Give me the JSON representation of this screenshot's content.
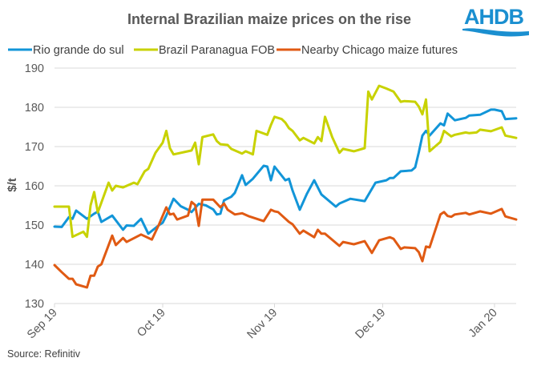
{
  "logo": {
    "text": "AHDB",
    "color": "#1a8fd0"
  },
  "source": "Source: Refinitiv",
  "chart_data": {
    "type": "line",
    "title": "Internal Brazilian maize prices on the rise",
    "xlabel": "",
    "ylabel": "$/t",
    "ylim": [
      130,
      190
    ],
    "yticks": [
      130,
      140,
      150,
      160,
      170,
      180,
      190
    ],
    "xlim": [
      "2019-09-01",
      "2020-01-07"
    ],
    "xticks": [
      {
        "date": "2019-09-01",
        "label": "Sep 19"
      },
      {
        "date": "2019-10-01",
        "label": "Oct 19"
      },
      {
        "date": "2019-11-01",
        "label": "Nov 19"
      },
      {
        "date": "2019-12-01",
        "label": "Dec 19"
      },
      {
        "date": "2020-01-01",
        "label": "Jan 20"
      }
    ],
    "grid": true,
    "legend": "top",
    "series": [
      {
        "name": "Rio grande do sul",
        "color": "#1295d8",
        "points": [
          [
            "2019-09-01",
            149.6
          ],
          [
            "2019-09-03",
            149.5
          ],
          [
            "2019-09-05",
            152.0
          ],
          [
            "2019-09-06",
            151.6
          ],
          [
            "2019-09-07",
            153.7
          ],
          [
            "2019-09-10",
            151.6
          ],
          [
            "2019-09-12",
            152.9
          ],
          [
            "2019-09-13",
            153.4
          ],
          [
            "2019-09-14",
            150.8
          ],
          [
            "2019-09-17",
            152.4
          ],
          [
            "2019-09-20",
            148.8
          ],
          [
            "2019-09-21",
            149.9
          ],
          [
            "2019-09-23",
            149.8
          ],
          [
            "2019-09-25",
            151.6
          ],
          [
            "2019-09-27",
            147.8
          ],
          [
            "2019-09-30",
            150.0
          ],
          [
            "2019-10-01",
            150.6
          ],
          [
            "2019-10-02",
            152.4
          ],
          [
            "2019-10-04",
            156.7
          ],
          [
            "2019-10-06",
            154.8
          ],
          [
            "2019-10-08",
            153.9
          ],
          [
            "2019-10-09",
            153.3
          ],
          [
            "2019-10-11",
            155.4
          ],
          [
            "2019-10-13",
            155.0
          ],
          [
            "2019-10-15",
            154.0
          ],
          [
            "2019-10-16",
            152.7
          ],
          [
            "2019-10-17",
            152.9
          ],
          [
            "2019-10-18",
            156.3
          ],
          [
            "2019-10-20",
            157.2
          ],
          [
            "2019-10-21",
            158.2
          ],
          [
            "2019-10-23",
            162.7
          ],
          [
            "2019-10-24",
            160.2
          ],
          [
            "2019-10-26",
            161.8
          ],
          [
            "2019-10-29",
            165.1
          ],
          [
            "2019-10-30",
            164.9
          ],
          [
            "2019-10-31",
            161.4
          ],
          [
            "2019-11-01",
            164.9
          ],
          [
            "2019-11-04",
            161.4
          ],
          [
            "2019-11-05",
            161.8
          ],
          [
            "2019-11-06",
            158.8
          ],
          [
            "2019-11-08",
            153.9
          ],
          [
            "2019-11-10",
            158.0
          ],
          [
            "2019-11-12",
            161.4
          ],
          [
            "2019-11-14",
            157.8
          ],
          [
            "2019-11-18",
            154.7
          ],
          [
            "2019-11-19",
            155.5
          ],
          [
            "2019-11-22",
            156.7
          ],
          [
            "2019-11-26",
            156.1
          ],
          [
            "2019-11-29",
            160.8
          ],
          [
            "2019-12-02",
            161.4
          ],
          [
            "2019-12-03",
            162.0
          ],
          [
            "2019-12-04",
            162.0
          ],
          [
            "2019-12-06",
            163.7
          ],
          [
            "2019-12-09",
            163.9
          ],
          [
            "2019-12-10",
            164.7
          ],
          [
            "2019-12-11",
            168.5
          ],
          [
            "2019-12-12",
            172.8
          ],
          [
            "2019-12-13",
            174.0
          ],
          [
            "2019-12-14",
            172.8
          ],
          [
            "2019-12-17",
            175.9
          ],
          [
            "2019-12-18",
            175.4
          ],
          [
            "2019-12-19",
            178.4
          ],
          [
            "2019-12-21",
            176.7
          ],
          [
            "2019-12-24",
            177.3
          ],
          [
            "2019-12-25",
            177.9
          ],
          [
            "2019-12-28",
            178.1
          ],
          [
            "2019-12-31",
            179.4
          ],
          [
            "2020-01-01",
            179.4
          ],
          [
            "2020-01-03",
            179.0
          ],
          [
            "2020-01-04",
            177.0
          ],
          [
            "2020-01-07",
            177.2
          ]
        ]
      },
      {
        "name": "Brazil Paranagua FOB",
        "color": "#c8d200",
        "points": [
          [
            "2019-09-01",
            154.7
          ],
          [
            "2019-09-05",
            154.7
          ],
          [
            "2019-09-06",
            147.0
          ],
          [
            "2019-09-09",
            148.3
          ],
          [
            "2019-09-10",
            147.0
          ],
          [
            "2019-09-11",
            155.0
          ],
          [
            "2019-09-12",
            158.4
          ],
          [
            "2019-09-13",
            153.2
          ],
          [
            "2019-09-16",
            160.8
          ],
          [
            "2019-09-17",
            158.8
          ],
          [
            "2019-09-18",
            160.0
          ],
          [
            "2019-09-20",
            159.6
          ],
          [
            "2019-09-23",
            160.8
          ],
          [
            "2019-09-24",
            160.4
          ],
          [
            "2019-09-26",
            163.7
          ],
          [
            "2019-09-27",
            164.3
          ],
          [
            "2019-09-29",
            168.4
          ],
          [
            "2019-10-01",
            171.0
          ],
          [
            "2019-10-02",
            174.0
          ],
          [
            "2019-10-03",
            169.6
          ],
          [
            "2019-10-04",
            168.0
          ],
          [
            "2019-10-08",
            168.8
          ],
          [
            "2019-10-09",
            169.0
          ],
          [
            "2019-10-10",
            171.0
          ],
          [
            "2019-10-11",
            165.5
          ],
          [
            "2019-10-12",
            172.4
          ],
          [
            "2019-10-15",
            173.1
          ],
          [
            "2019-10-16",
            171.4
          ],
          [
            "2019-10-17",
            170.6
          ],
          [
            "2019-10-19",
            170.4
          ],
          [
            "2019-10-20",
            169.4
          ],
          [
            "2019-10-23",
            168.2
          ],
          [
            "2019-10-24",
            168.8
          ],
          [
            "2019-10-25",
            168.4
          ],
          [
            "2019-10-26",
            168.0
          ],
          [
            "2019-10-27",
            174.0
          ],
          [
            "2019-10-30",
            173.0
          ],
          [
            "2019-10-31",
            175.5
          ],
          [
            "2019-11-01",
            177.6
          ],
          [
            "2019-11-03",
            177.0
          ],
          [
            "2019-11-04",
            176.1
          ],
          [
            "2019-11-05",
            174.7
          ],
          [
            "2019-11-06",
            174.0
          ],
          [
            "2019-11-08",
            171.6
          ],
          [
            "2019-11-09",
            172.2
          ],
          [
            "2019-11-12",
            170.8
          ],
          [
            "2019-11-13",
            172.4
          ],
          [
            "2019-11-14",
            171.4
          ],
          [
            "2019-11-15",
            177.6
          ],
          [
            "2019-11-17",
            172.4
          ],
          [
            "2019-11-19",
            168.4
          ],
          [
            "2019-11-20",
            169.4
          ],
          [
            "2019-11-23",
            168.8
          ],
          [
            "2019-11-26",
            169.6
          ],
          [
            "2019-11-27",
            184.0
          ],
          [
            "2019-11-28",
            182.0
          ],
          [
            "2019-11-30",
            185.5
          ],
          [
            "2019-12-02",
            184.8
          ],
          [
            "2019-12-04",
            184.0
          ],
          [
            "2019-12-06",
            181.4
          ],
          [
            "2019-12-07",
            181.6
          ],
          [
            "2019-12-10",
            181.4
          ],
          [
            "2019-12-11",
            180.2
          ],
          [
            "2019-12-12",
            178.2
          ],
          [
            "2019-12-13",
            182.0
          ],
          [
            "2019-12-14",
            168.8
          ],
          [
            "2019-12-17",
            171.2
          ],
          [
            "2019-12-18",
            174.0
          ],
          [
            "2019-12-20",
            172.6
          ],
          [
            "2019-12-21",
            173.0
          ],
          [
            "2019-12-24",
            173.6
          ],
          [
            "2019-12-25",
            173.4
          ],
          [
            "2019-12-27",
            173.6
          ],
          [
            "2019-12-28",
            174.3
          ],
          [
            "2019-12-31",
            173.9
          ],
          [
            "2020-01-03",
            174.9
          ],
          [
            "2020-01-04",
            172.8
          ],
          [
            "2020-01-07",
            172.2
          ]
        ]
      },
      {
        "name": "Nearby Chicago maize futures",
        "color": "#e05a13",
        "points": [
          [
            "2019-09-01",
            139.8
          ],
          [
            "2019-09-03",
            138.0
          ],
          [
            "2019-09-05",
            136.3
          ],
          [
            "2019-09-06",
            136.3
          ],
          [
            "2019-09-07",
            134.9
          ],
          [
            "2019-09-10",
            134.1
          ],
          [
            "2019-09-11",
            137.1
          ],
          [
            "2019-09-12",
            137.1
          ],
          [
            "2019-09-13",
            139.4
          ],
          [
            "2019-09-14",
            140.0
          ],
          [
            "2019-09-17",
            147.3
          ],
          [
            "2019-09-18",
            144.9
          ],
          [
            "2019-09-20",
            146.7
          ],
          [
            "2019-09-21",
            145.7
          ],
          [
            "2019-09-25",
            147.6
          ],
          [
            "2019-09-28",
            146.3
          ],
          [
            "2019-09-30",
            150.2
          ],
          [
            "2019-10-02",
            154.5
          ],
          [
            "2019-10-03",
            152.7
          ],
          [
            "2019-10-04",
            152.9
          ],
          [
            "2019-10-05",
            151.4
          ],
          [
            "2019-10-08",
            152.4
          ],
          [
            "2019-10-09",
            155.9
          ],
          [
            "2019-10-10",
            155.1
          ],
          [
            "2019-10-11",
            149.8
          ],
          [
            "2019-10-12",
            156.5
          ],
          [
            "2019-10-15",
            156.5
          ],
          [
            "2019-10-17",
            154.5
          ],
          [
            "2019-10-18",
            155.5
          ],
          [
            "2019-10-19",
            153.9
          ],
          [
            "2019-10-21",
            152.7
          ],
          [
            "2019-10-23",
            153.0
          ],
          [
            "2019-10-25",
            152.2
          ],
          [
            "2019-10-29",
            151.0
          ],
          [
            "2019-10-31",
            153.9
          ],
          [
            "2019-11-01",
            153.5
          ],
          [
            "2019-11-02",
            153.3
          ],
          [
            "2019-11-05",
            150.8
          ],
          [
            "2019-11-06",
            150.2
          ],
          [
            "2019-11-08",
            147.8
          ],
          [
            "2019-11-09",
            148.6
          ],
          [
            "2019-11-12",
            146.9
          ],
          [
            "2019-11-13",
            148.8
          ],
          [
            "2019-11-14",
            147.8
          ],
          [
            "2019-11-15",
            147.8
          ],
          [
            "2019-11-19",
            144.7
          ],
          [
            "2019-11-20",
            145.7
          ],
          [
            "2019-11-23",
            145.1
          ],
          [
            "2019-11-26",
            145.9
          ],
          [
            "2019-11-28",
            142.9
          ],
          [
            "2019-11-30",
            146.1
          ],
          [
            "2019-12-03",
            146.9
          ],
          [
            "2019-12-04",
            146.5
          ],
          [
            "2019-12-06",
            143.9
          ],
          [
            "2019-12-07",
            144.3
          ],
          [
            "2019-12-10",
            144.1
          ],
          [
            "2019-12-11",
            143.1
          ],
          [
            "2019-12-12",
            140.8
          ],
          [
            "2019-12-13",
            144.5
          ],
          [
            "2019-12-14",
            144.3
          ],
          [
            "2019-12-17",
            152.7
          ],
          [
            "2019-12-18",
            153.3
          ],
          [
            "2019-12-19",
            152.3
          ],
          [
            "2019-12-20",
            152.1
          ],
          [
            "2019-12-21",
            152.7
          ],
          [
            "2019-12-24",
            153.1
          ],
          [
            "2019-12-25",
            152.7
          ],
          [
            "2019-12-28",
            153.5
          ],
          [
            "2019-12-31",
            152.9
          ],
          [
            "2020-01-03",
            154.1
          ],
          [
            "2020-01-04",
            152.2
          ],
          [
            "2020-01-07",
            151.4
          ]
        ]
      }
    ]
  }
}
